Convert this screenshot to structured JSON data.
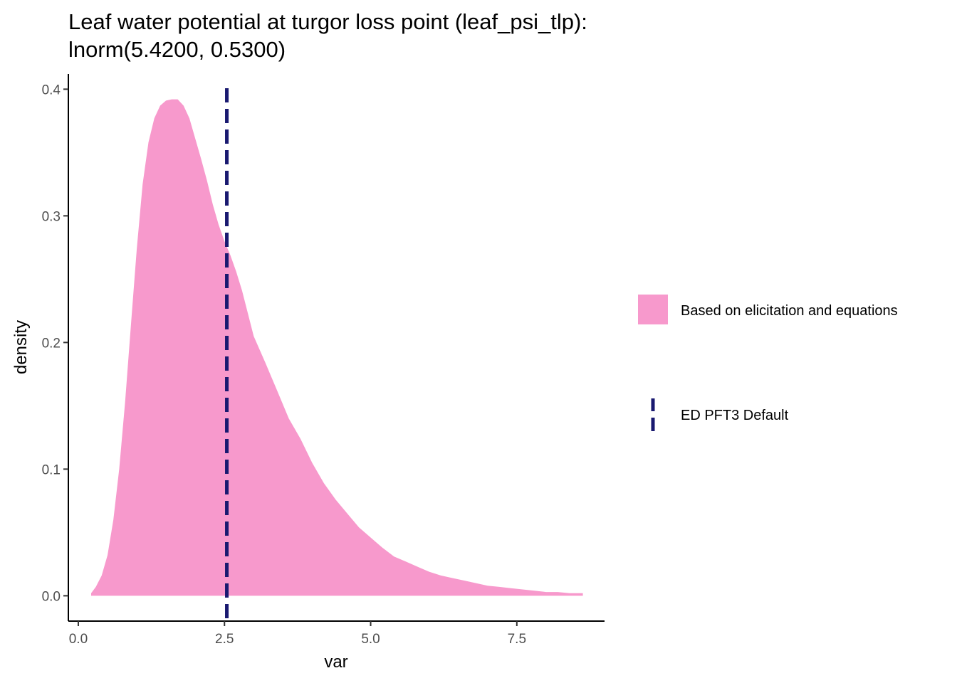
{
  "chart_data": {
    "type": "area",
    "title": "Leaf water potential at turgor loss point (leaf_psi_tlp):",
    "subtitle": "lnorm(5.4200, 0.5300)",
    "xlabel": "var",
    "ylabel": "density",
    "xlim": [
      -0.17,
      9.0
    ],
    "ylim": [
      -0.02,
      0.412
    ],
    "x_ticks": [
      0.0,
      2.5,
      5.0,
      7.5
    ],
    "x_tick_labels": [
      "0.0",
      "2.5",
      "5.0",
      "7.5"
    ],
    "y_ticks": [
      0.0,
      0.1,
      0.2,
      0.3,
      0.4
    ],
    "y_tick_labels": [
      "0.0",
      "0.1",
      "0.2",
      "0.3",
      "0.4"
    ],
    "grid": false,
    "legend_position": "right",
    "density_series": {
      "name": "Based on elicitation and equations",
      "color": "#F799CC",
      "x": [
        0.22,
        0.3,
        0.4,
        0.5,
        0.6,
        0.7,
        0.8,
        0.9,
        1.0,
        1.1,
        1.2,
        1.3,
        1.4,
        1.5,
        1.6,
        1.7,
        1.8,
        1.9,
        2.0,
        2.1,
        2.2,
        2.3,
        2.4,
        2.5,
        2.6,
        2.7,
        2.8,
        2.9,
        3.0,
        3.2,
        3.4,
        3.6,
        3.8,
        4.0,
        4.2,
        4.4,
        4.6,
        4.8,
        5.0,
        5.2,
        5.4,
        5.6,
        5.8,
        6.0,
        6.2,
        6.4,
        6.6,
        6.8,
        7.0,
        7.2,
        7.4,
        7.6,
        7.8,
        8.0,
        8.2,
        8.4,
        8.63
      ],
      "y": [
        0.002,
        0.007,
        0.016,
        0.032,
        0.06,
        0.1,
        0.153,
        0.214,
        0.274,
        0.325,
        0.358,
        0.377,
        0.387,
        0.391,
        0.392,
        0.392,
        0.387,
        0.377,
        0.361,
        0.345,
        0.328,
        0.309,
        0.293,
        0.28,
        0.269,
        0.256,
        0.241,
        0.223,
        0.205,
        0.184,
        0.162,
        0.14,
        0.124,
        0.105,
        0.089,
        0.076,
        0.065,
        0.054,
        0.046,
        0.038,
        0.031,
        0.027,
        0.023,
        0.019,
        0.016,
        0.014,
        0.012,
        0.01,
        0.008,
        0.007,
        0.006,
        0.005,
        0.004,
        0.003,
        0.003,
        0.002,
        0.002
      ]
    },
    "default_line": {
      "name": "ED PFT3 Default",
      "x": 2.54,
      "color": "#191970",
      "style": "dashed"
    }
  }
}
